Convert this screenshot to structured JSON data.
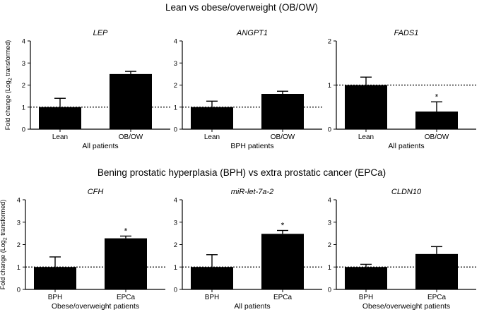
{
  "sections": [
    {
      "title": "Lean vs obese/overweight (OB/OW)"
    },
    {
      "title": "Bening prostatic hyperplasia (BPH) vs extra prostatic cancer (EPCa)"
    }
  ],
  "ylabel": {
    "prefix": "Fold change (Log",
    "sub": "2",
    "suffix": " transformed)"
  },
  "colors": {
    "bar": "#000000",
    "axis": "#000000",
    "reference": "#000000"
  },
  "chart_data": [
    {
      "type": "bar",
      "title": "LEP",
      "categories": [
        "Lean",
        "OB/OW"
      ],
      "values": [
        1.0,
        2.5
      ],
      "errors": [
        0.4,
        0.12
      ],
      "significant": [
        false,
        false
      ],
      "xlabel": "All patients",
      "ylabel": "Fold change (Log2 transformed)",
      "ylim": [
        0,
        4
      ],
      "yticks": [
        0,
        1,
        2,
        3,
        4
      ],
      "reference_line": 1
    },
    {
      "type": "bar",
      "title": "ANGPT1",
      "categories": [
        "Lean",
        "OB/OW"
      ],
      "values": [
        1.0,
        1.6
      ],
      "errors": [
        0.27,
        0.12
      ],
      "significant": [
        false,
        false
      ],
      "xlabel": "BPH patients",
      "ylabel": "",
      "ylim": [
        0,
        4
      ],
      "yticks": [
        0,
        1,
        2,
        3,
        4
      ],
      "reference_line": 1
    },
    {
      "type": "bar",
      "title": "FADS1",
      "categories": [
        "Lean",
        "OB/OW"
      ],
      "values": [
        1.0,
        0.4
      ],
      "errors": [
        0.18,
        0.22
      ],
      "significant": [
        false,
        true
      ],
      "xlabel": "All patients",
      "ylabel": "",
      "ylim": [
        0,
        2
      ],
      "yticks": [
        0,
        1,
        2
      ],
      "reference_line": 1
    },
    {
      "type": "bar",
      "title": "CFH",
      "categories": [
        "BPH",
        "EPCa"
      ],
      "values": [
        1.0,
        2.28
      ],
      "errors": [
        0.45,
        0.1
      ],
      "significant": [
        false,
        true
      ],
      "xlabel": "Obese/overweight patients",
      "ylabel": "Fold change (Log2 transformed)",
      "ylim": [
        0,
        4
      ],
      "yticks": [
        0,
        1,
        2,
        3,
        4
      ],
      "reference_line": 1
    },
    {
      "type": "bar",
      "title": "miR-let-7a-2",
      "categories": [
        "BPH",
        "EPCa"
      ],
      "values": [
        1.0,
        2.48
      ],
      "errors": [
        0.55,
        0.15
      ],
      "significant": [
        false,
        true
      ],
      "xlabel": "All patients",
      "ylabel": "",
      "ylim": [
        0,
        4
      ],
      "yticks": [
        0,
        1,
        2,
        3,
        4
      ],
      "reference_line": 1
    },
    {
      "type": "bar",
      "title": "CLDN10",
      "categories": [
        "BPH",
        "EPCa"
      ],
      "values": [
        1.0,
        1.58
      ],
      "errors": [
        0.12,
        0.33
      ],
      "significant": [
        false,
        false
      ],
      "xlabel": "Obese/overweight patients",
      "ylabel": "",
      "ylim": [
        0,
        4
      ],
      "yticks": [
        0,
        1,
        2,
        3,
        4
      ],
      "reference_line": 1
    }
  ]
}
